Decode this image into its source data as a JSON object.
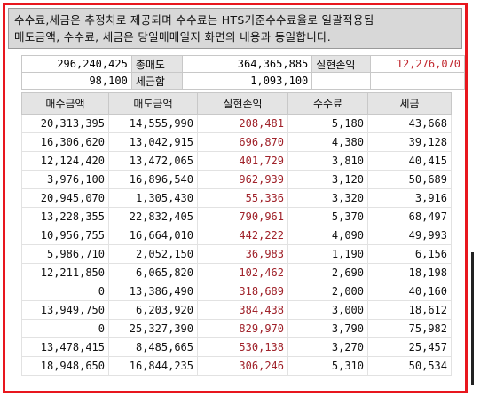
{
  "notice": {
    "line1": "수수료,세금은 추정치로 제공되며 수수료는 HTS기준수수료율로 일괄적용됨",
    "line2": "매도금액, 수수료, 세금은 당일매매일지 화면의 내용과 동일합니다."
  },
  "summary": {
    "row1": {
      "buy_total": "296,240,425",
      "sell_label": "총매도",
      "sell_total": "364,365,885",
      "pl_label": "실현손익",
      "pl_total": "12,276,070"
    },
    "row2": {
      "fee_total": "98,100",
      "tax_label": "세금합",
      "tax_total": "1,093,100"
    }
  },
  "table": {
    "headers": [
      "매수금액",
      "매도금액",
      "실현손익",
      "수수료",
      "세금"
    ],
    "rows": [
      [
        "20,313,395",
        "14,555,990",
        "208,481",
        "5,180",
        "43,668"
      ],
      [
        "16,306,620",
        "13,042,915",
        "696,870",
        "4,380",
        "39,128"
      ],
      [
        "12,124,420",
        "13,472,065",
        "401,729",
        "3,810",
        "40,415"
      ],
      [
        "3,976,100",
        "16,896,540",
        "962,939",
        "3,120",
        "50,689"
      ],
      [
        "20,945,070",
        "1,305,430",
        "55,336",
        "3,320",
        "3,916"
      ],
      [
        "13,228,355",
        "22,832,405",
        "790,961",
        "5,370",
        "68,497"
      ],
      [
        "10,956,755",
        "16,664,010",
        "442,222",
        "4,090",
        "49,993"
      ],
      [
        "5,986,710",
        "2,052,150",
        "36,983",
        "1,190",
        "6,156"
      ],
      [
        "12,211,850",
        "6,065,820",
        "102,462",
        "2,690",
        "18,198"
      ],
      [
        "0",
        "13,386,490",
        "318,689",
        "2,000",
        "40,160"
      ],
      [
        "13,949,750",
        "6,203,920",
        "384,438",
        "3,000",
        "18,612"
      ],
      [
        "0",
        "25,327,390",
        "829,970",
        "3,790",
        "75,982"
      ],
      [
        "13,478,415",
        "8,485,665",
        "530,138",
        "3,270",
        "25,457"
      ],
      [
        "18,948,650",
        "16,844,235",
        "306,246",
        "5,310",
        "50,534"
      ]
    ]
  },
  "colors": {
    "frame_border": "#e8171e",
    "profit_text": "#a0222a",
    "header_bg": "#e4e4e4",
    "notice_bg": "#d8d8d8"
  }
}
